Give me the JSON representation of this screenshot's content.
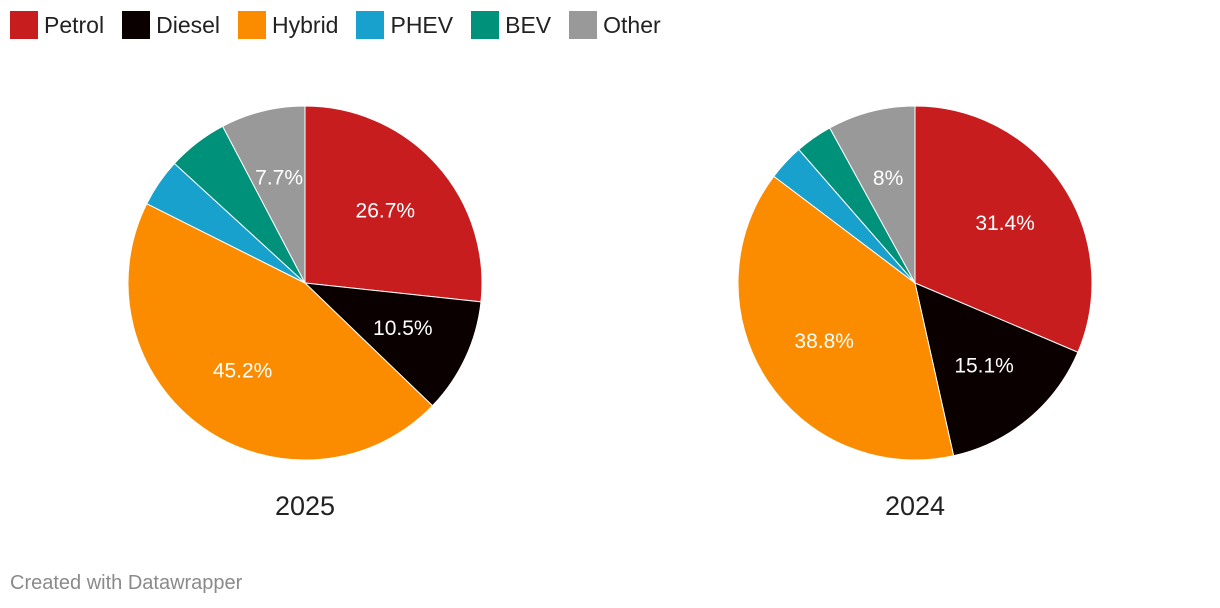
{
  "legend": [
    {
      "label": "Petrol",
      "color": "#c81d1e"
    },
    {
      "label": "Diesel",
      "color": "#0b0000"
    },
    {
      "label": "Hybrid",
      "color": "#fb8c00"
    },
    {
      "label": "PHEV",
      "color": "#18a1cd"
    },
    {
      "label": "BEV",
      "color": "#00917a"
    },
    {
      "label": "Other",
      "color": "#999999"
    }
  ],
  "chart_data": [
    {
      "type": "pie",
      "title": "2025",
      "categories": [
        "Petrol",
        "Diesel",
        "Hybrid",
        "PHEV",
        "BEV",
        "Other"
      ],
      "values": [
        26.7,
        10.5,
        45.2,
        4.4,
        5.5,
        7.7
      ],
      "labels": [
        "26.7%",
        "10.5%",
        "45.2%",
        "",
        "",
        "7.7%"
      ]
    },
    {
      "type": "pie",
      "title": "2024",
      "categories": [
        "Petrol",
        "Diesel",
        "Hybrid",
        "PHEV",
        "BEV",
        "Other"
      ],
      "values": [
        31.4,
        15.1,
        38.8,
        3.3,
        3.4,
        8
      ],
      "labels": [
        "31.4%",
        "15.1%",
        "38.8%",
        "",
        "",
        "8%"
      ]
    }
  ],
  "footer": {
    "credit": "Created with Datawrapper"
  }
}
